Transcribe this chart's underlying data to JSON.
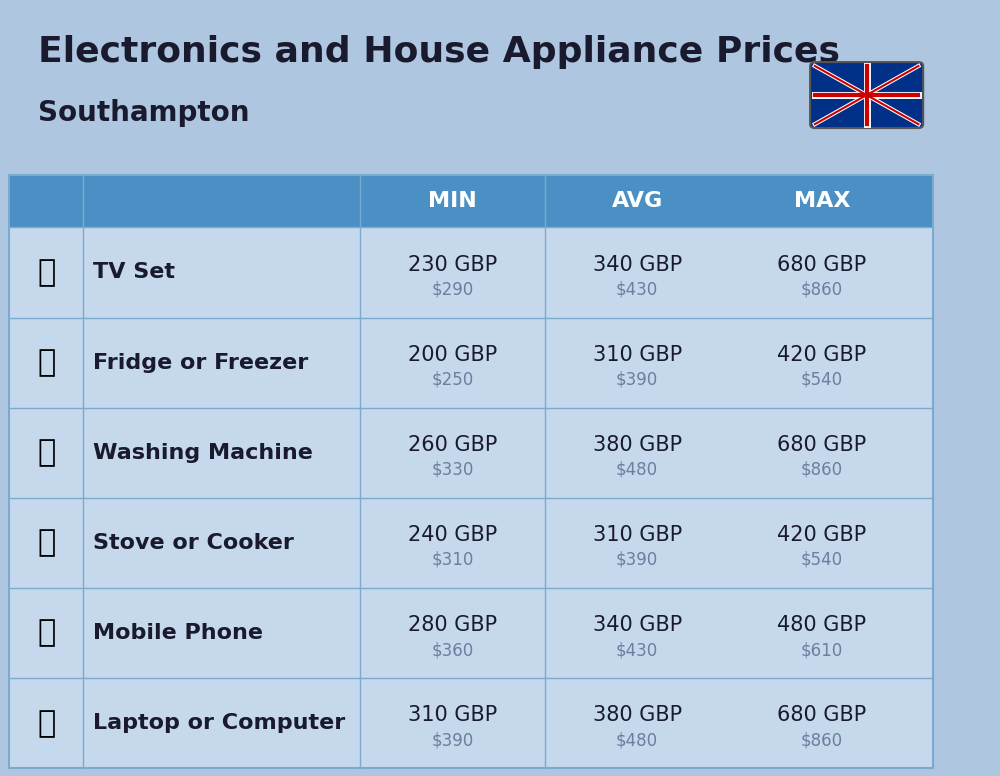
{
  "title": "Electronics and House Appliance Prices",
  "subtitle": "Southampton",
  "background_color": "#aec6e0",
  "header_color": "#4a90c4",
  "header_text_color": "#ffffff",
  "row_color_light": "#c5d8ec",
  "row_color_dark": "#b8cee0",
  "divider_color": "#7aaace",
  "columns": [
    "",
    "",
    "MIN",
    "AVG",
    "MAX"
  ],
  "rows": [
    {
      "label": "TV Set",
      "emoji": "📺",
      "min_gbp": "230 GBP",
      "min_usd": "$290",
      "avg_gbp": "340 GBP",
      "avg_usd": "$430",
      "max_gbp": "680 GBP",
      "max_usd": "$860"
    },
    {
      "label": "Fridge or Freezer",
      "emoji": "🇦",
      "min_gbp": "200 GBP",
      "min_usd": "$250",
      "avg_gbp": "310 GBP",
      "avg_usd": "$390",
      "max_gbp": "420 GBP",
      "max_usd": "$540"
    },
    {
      "label": "Washing Machine",
      "emoji": "🧳",
      "min_gbp": "260 GBP",
      "min_usd": "$330",
      "avg_gbp": "380 GBP",
      "avg_usd": "$480",
      "max_gbp": "680 GBP",
      "max_usd": "$860"
    },
    {
      "label": "Stove or Cooker",
      "emoji": "🍳",
      "min_gbp": "240 GBP",
      "min_usd": "$310",
      "avg_gbp": "310 GBP",
      "avg_usd": "$390",
      "max_gbp": "420 GBP",
      "max_usd": "$540"
    },
    {
      "label": "Mobile Phone",
      "emoji": "📱",
      "min_gbp": "280 GBP",
      "min_usd": "$360",
      "avg_gbp": "340 GBP",
      "avg_usd": "$430",
      "max_gbp": "480 GBP",
      "max_usd": "$610"
    },
    {
      "label": "Laptop or Computer",
      "emoji": "💻",
      "min_gbp": "310 GBP",
      "min_usd": "$390",
      "avg_gbp": "380 GBP",
      "avg_usd": "$480",
      "max_gbp": "680 GBP",
      "max_usd": "$860"
    }
  ],
  "title_fontsize": 26,
  "subtitle_fontsize": 20,
  "header_fontsize": 16,
  "cell_gbp_fontsize": 15,
  "cell_usd_fontsize": 12,
  "label_fontsize": 16
}
